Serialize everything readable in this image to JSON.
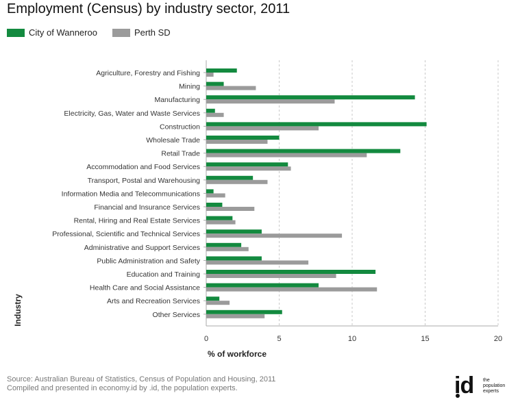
{
  "title": "Employment (Census) by industry sector, 2011",
  "legend": [
    {
      "label": "City of Wanneroo",
      "color": "#138a3f"
    },
    {
      "label": "Perth SD",
      "color": "#9b9b9b"
    }
  ],
  "footer": {
    "line1": "Source: Australian Bureau of Statistics, Census of Population and Housing, 2011",
    "line2": "Compiled and presented in economy.id by .id, the population experts."
  },
  "logo": {
    "mark": "id",
    "tagline": "the population experts"
  },
  "chart_data": {
    "type": "bar",
    "orientation": "horizontal",
    "xlabel": "% of workforce",
    "ylabel": "Industry",
    "xlim": [
      0,
      20
    ],
    "xticks": [
      0,
      5,
      10,
      15,
      20
    ],
    "grid": "vertical dashed",
    "legend_position": "top-left",
    "categories": [
      "Agriculture, Forestry and Fishing",
      "Mining",
      "Manufacturing",
      "Electricity, Gas, Water and Waste Services",
      "Construction",
      "Wholesale Trade",
      "Retail Trade",
      "Accommodation and Food Services",
      "Transport, Postal and Warehousing",
      "Information Media and Telecommunications",
      "Financial and Insurance Services",
      "Rental, Hiring and Real Estate Services",
      "Professional, Scientific and Technical Services",
      "Administrative and Support Services",
      "Public Administration and Safety",
      "Education and Training",
      "Health Care and Social Assistance",
      "Arts and Recreation Services",
      "Other Services"
    ],
    "series": [
      {
        "name": "City of Wanneroo",
        "color": "#138a3f",
        "values": [
          2.1,
          1.2,
          14.3,
          0.6,
          15.1,
          5.0,
          13.3,
          5.6,
          3.2,
          0.5,
          1.1,
          1.8,
          3.8,
          2.4,
          3.8,
          11.6,
          7.7,
          0.9,
          5.2
        ]
      },
      {
        "name": "Perth SD",
        "color": "#9b9b9b",
        "values": [
          0.5,
          3.4,
          8.8,
          1.2,
          7.7,
          4.2,
          11.0,
          5.8,
          4.2,
          1.3,
          3.3,
          2.0,
          9.3,
          2.9,
          7.0,
          8.9,
          11.7,
          1.6,
          4.0
        ]
      }
    ]
  }
}
